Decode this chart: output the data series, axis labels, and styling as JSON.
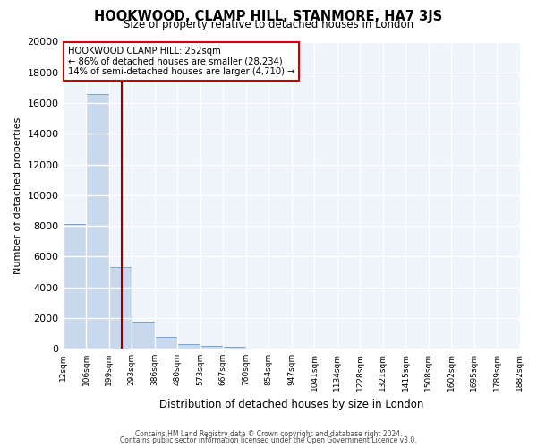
{
  "title": "HOOKWOOD, CLAMP HILL, STANMORE, HA7 3JS",
  "subtitle": "Size of property relative to detached houses in London",
  "xlabel": "Distribution of detached houses by size in London",
  "ylabel": "Number of detached properties",
  "bar_values": [
    8100,
    16600,
    5300,
    1750,
    750,
    300,
    200,
    150,
    0,
    0,
    0,
    0,
    0,
    0,
    0,
    0,
    0,
    0,
    0,
    0
  ],
  "bin_labels": [
    "12sqm",
    "106sqm",
    "199sqm",
    "293sqm",
    "386sqm",
    "480sqm",
    "573sqm",
    "667sqm",
    "760sqm",
    "854sqm",
    "947sqm",
    "1041sqm",
    "1134sqm",
    "1228sqm",
    "1321sqm",
    "1415sqm",
    "1508sqm",
    "1602sqm",
    "1695sqm",
    "1789sqm",
    "1882sqm"
  ],
  "bar_color": "#c8d8ed",
  "bar_edge_color": "#6699cc",
  "background_color": "#ffffff",
  "plot_bg_color": "#f0f4fb",
  "grid_color": "#ffffff",
  "vline_color": "#990000",
  "annotation_title": "HOOKWOOD CLAMP HILL: 252sqm",
  "annotation_line1": "← 86% of detached houses are smaller (28,234)",
  "annotation_line2": "14% of semi-detached houses are larger (4,710) →",
  "annotation_box_color": "#ffffff",
  "annotation_border_color": "#cc0000",
  "ylim": [
    0,
    20000
  ],
  "yticks": [
    0,
    2000,
    4000,
    6000,
    8000,
    10000,
    12000,
    14000,
    16000,
    18000,
    20000
  ],
  "footer_line1": "Contains HM Land Registry data © Crown copyright and database right 2024.",
  "footer_line2": "Contains public sector information licensed under the Open Government Licence v3.0."
}
